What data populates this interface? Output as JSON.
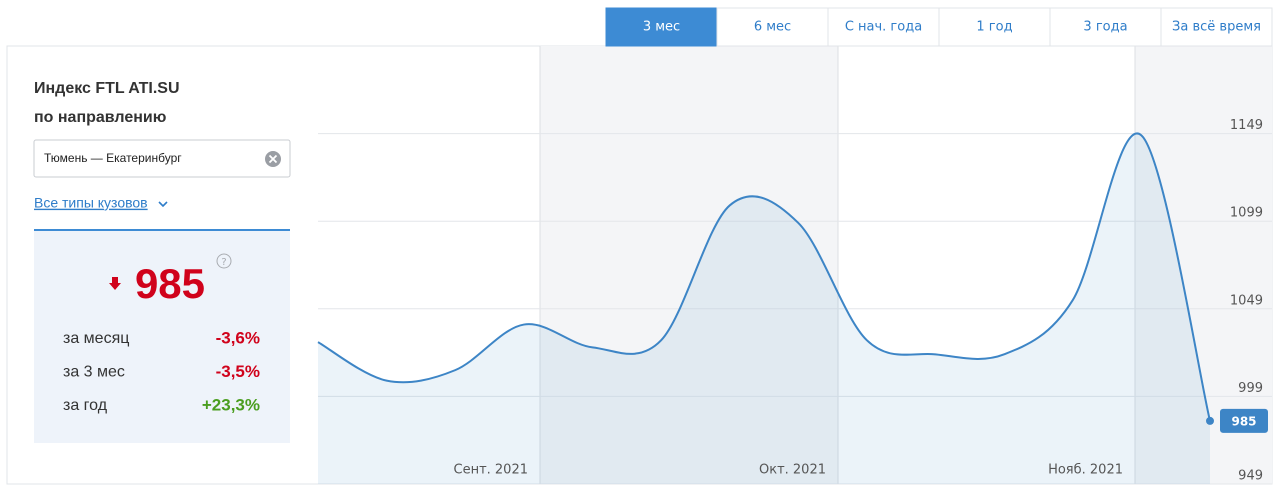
{
  "tabs": [
    "3 мес",
    "6 мес",
    "С нач. года",
    "1 год",
    "3 года",
    "За всё время"
  ],
  "active_tab": 0,
  "panel": {
    "title_line1": "Индекс FTL ATI.SU",
    "title_line2": "по направлению",
    "route": "Тюмень — Екатеринбург",
    "body_types": "Все типы кузовов",
    "help": "?",
    "stats": [
      {
        "label": "за месяц",
        "value": "-3,6%",
        "color": "#d0021b"
      },
      {
        "label": "за 3 мес",
        "value": "-3,5%",
        "color": "#d0021b"
      },
      {
        "label": "за год",
        "value": "+23,3%",
        "color": "#4a9e1f"
      }
    ]
  },
  "chart_data": {
    "type": "line",
    "categories": [
      null,
      null,
      null,
      null,
      null,
      null,
      null,
      null,
      null,
      null,
      null,
      null,
      null,
      null
    ],
    "series": [
      {
        "color": "#3d85c6",
        "values": [
          1030,
          1008,
          1014,
          1040,
          1027,
          1031,
          1108,
          1098,
          1031,
          1023,
          1023,
          1054,
          1148,
          985
        ]
      }
    ],
    "x_labels": [
      "Сент. 2021",
      "Окт. 2021",
      "Нояб. 2021"
    ],
    "ylim": [
      949,
      1199
    ],
    "yticks": [
      949,
      999,
      1049,
      1099,
      1149
    ],
    "grid": true
  }
}
